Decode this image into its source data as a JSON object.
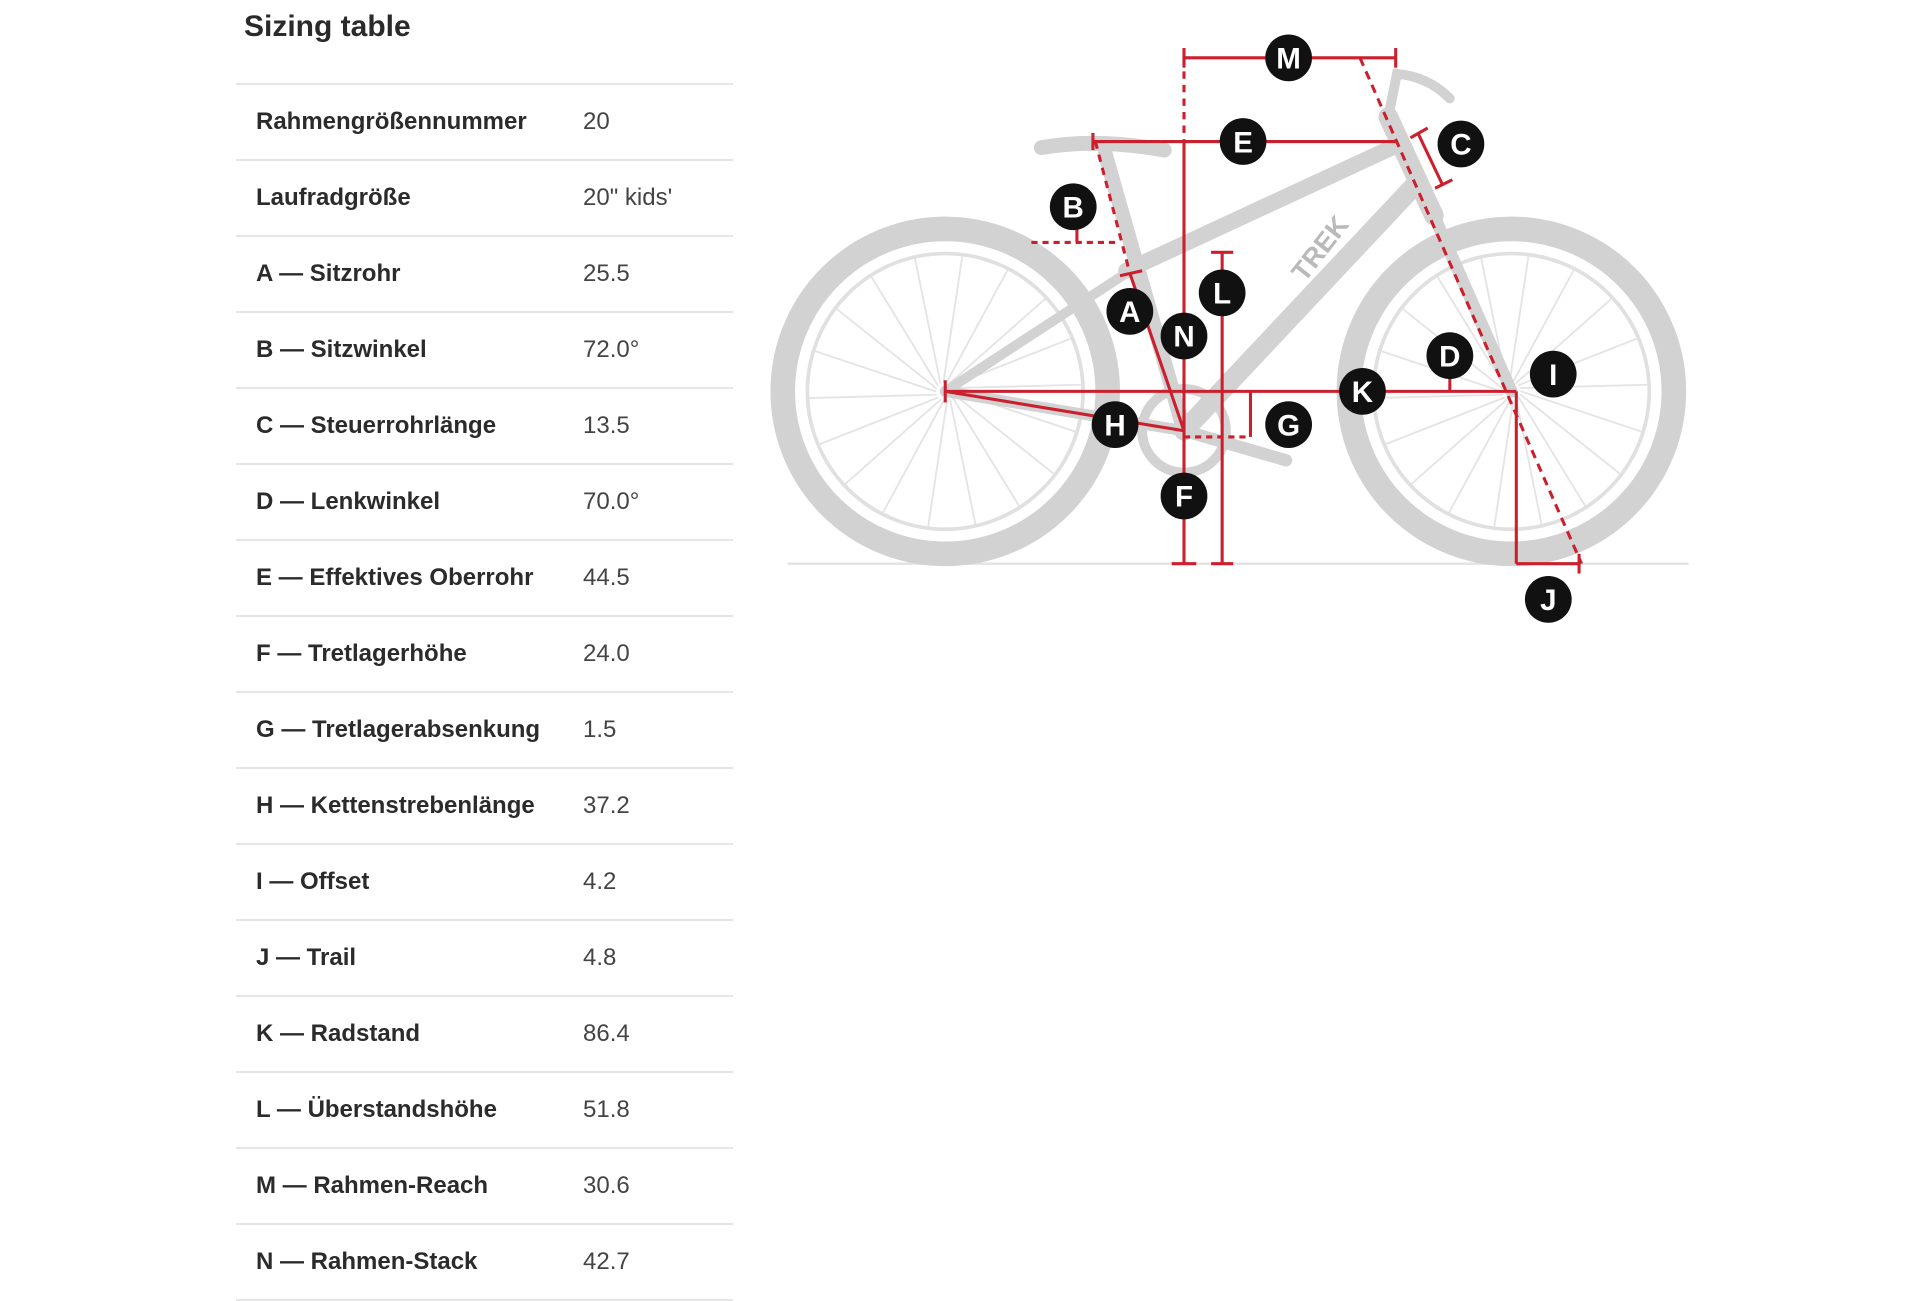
{
  "title": "Sizing table",
  "rows": [
    {
      "label": "Rahmengrößennummer",
      "value": "20"
    },
    {
      "label": "Laufradgröße",
      "value": "20\" kids'"
    },
    {
      "label": "A — Sitzrohr",
      "value": "25.5"
    },
    {
      "label": "B — Sitzwinkel",
      "value": "72.0°"
    },
    {
      "label": "C — Steuerrohrlänge",
      "value": "13.5"
    },
    {
      "label": "D — Lenkwinkel",
      "value": "70.0°"
    },
    {
      "label": "E — Effektives Oberrohr",
      "value": "44.5"
    },
    {
      "label": "F — Tretlagerhöhe",
      "value": "24.0"
    },
    {
      "label": "G — Tretlagerabsenkung",
      "value": "1.5"
    },
    {
      "label": "H — Kettenstrebenlänge",
      "value": "37.2"
    },
    {
      "label": "I — Offset",
      "value": "4.2"
    },
    {
      "label": "J — Trail",
      "value": "4.8"
    },
    {
      "label": "K — Radstand",
      "value": "86.4"
    },
    {
      "label": "L — Überstandshöhe",
      "value": "51.8"
    },
    {
      "label": "M — Rahmen-Reach",
      "value": "30.6"
    },
    {
      "label": "N — Rahmen-Stack",
      "value": "42.7"
    }
  ],
  "diagram": {
    "bike_logo": "TREK",
    "colors": {
      "measure": "#cc1f2d",
      "bike": "#d2d2d2",
      "label_bg": "#111111"
    },
    "labels": {
      "A": "A",
      "B": "B",
      "C": "C",
      "D": "D",
      "E": "E",
      "F": "F",
      "G": "G",
      "H": "H",
      "I": "I",
      "J": "J",
      "K": "K",
      "L": "L",
      "M": "M",
      "N": "N"
    }
  }
}
